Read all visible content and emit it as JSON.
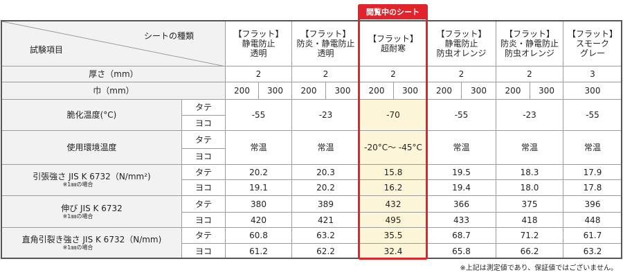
{
  "badge": "閲覧中のシート",
  "header": {
    "item_type": "シートの種類",
    "test_item": "試験項目",
    "columns": [
      [
        "【フラット】",
        "静電防止",
        "透明"
      ],
      [
        "【フラット】",
        "防炎・静電防止",
        "透明"
      ],
      [
        "【フラット】",
        "超耐寒"
      ],
      [
        "【フラット】",
        "静電防止",
        "防虫オレンジ"
      ],
      [
        "【フラット】",
        "防炎・静電防止",
        "防虫オレンジ"
      ],
      [
        "【フラット】",
        "スモーク",
        "グレー"
      ]
    ]
  },
  "thickness": {
    "label": "厚さ（mm）",
    "values": [
      "2",
      "2",
      "2",
      "2",
      "2",
      "3"
    ]
  },
  "width": {
    "label": "巾（mm）",
    "values": [
      [
        "200",
        "300"
      ],
      [
        "200",
        "300"
      ],
      [
        "200",
        "300"
      ],
      [
        "200",
        "300"
      ],
      [
        "200",
        "300"
      ],
      [
        "300"
      ]
    ]
  },
  "tests": [
    {
      "label": "脆化温度(°C)",
      "directions": [
        "タテ",
        "ヨコ"
      ],
      "values": [
        "-55",
        "-23",
        "-70",
        "-55",
        "-23",
        "-55"
      ]
    },
    {
      "label": "使用環境温度",
      "directions": [
        "タテ",
        "ヨコ"
      ],
      "values": [
        "常温",
        "常温",
        "-20°C～ -45°C",
        "常温",
        "常温",
        "常温"
      ]
    },
    {
      "label": "引張強さ JIS K 6732（N/mm²)",
      "note": "※1㎜の場合",
      "directions": [
        "タテ",
        "ヨコ"
      ],
      "rows": [
        [
          "20.2",
          "20.3",
          "15.8",
          "19.5",
          "18.3",
          "17.9"
        ],
        [
          "19.1",
          "20.2",
          "16.2",
          "19.4",
          "18.0",
          "17.8"
        ]
      ]
    },
    {
      "label": "伸び JIS K 6732",
      "note": "※1㎜の場合",
      "directions": [
        "タテ",
        "ヨコ"
      ],
      "rows": [
        [
          "380",
          "389",
          "432",
          "366",
          "375",
          "396"
        ],
        [
          "420",
          "421",
          "495",
          "433",
          "418",
          "448"
        ]
      ]
    },
    {
      "label": "直角引裂き強さ JIS K 6732（N/mm)",
      "note": "※1㎜の場合",
      "directions": [
        "タテ",
        "ヨコ"
      ],
      "rows": [
        [
          "60.8",
          "63.2",
          "35.5",
          "68.7",
          "71.2",
          "61.7"
        ],
        [
          "61.2",
          "62.2",
          "32.4",
          "65.8",
          "66.2",
          "63.2"
        ]
      ]
    }
  ],
  "footnote": "※上記は測定値であり、保証値ではございません。"
}
